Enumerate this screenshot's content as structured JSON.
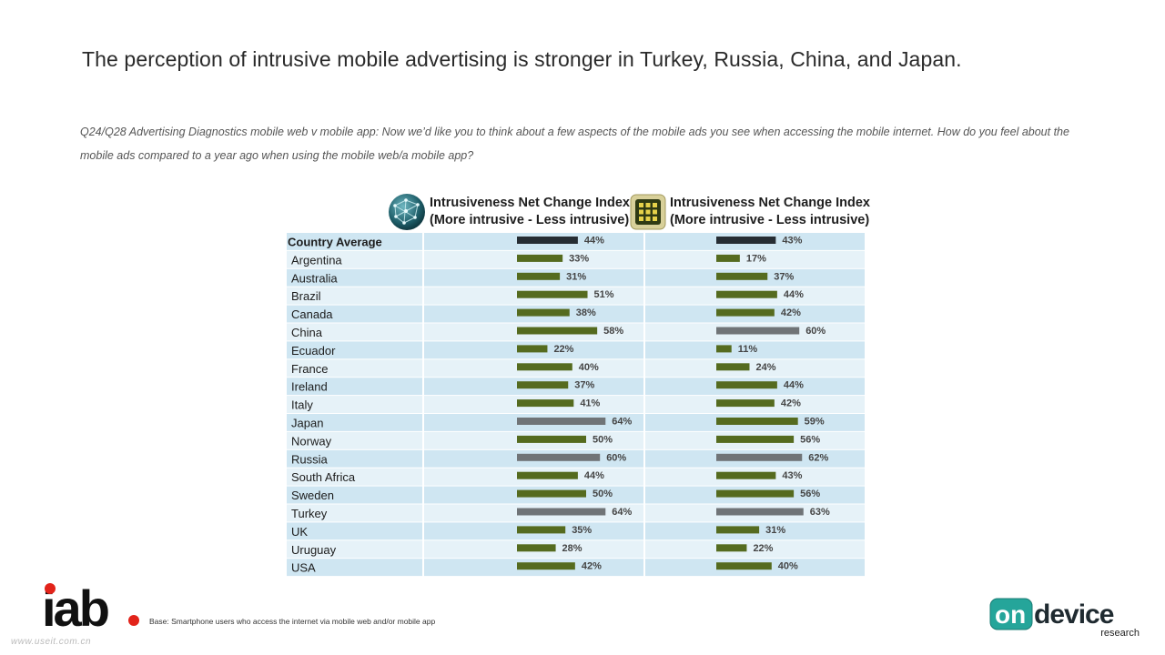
{
  "title": "The perception of intrusive mobile advertising is stronger in Turkey, Russia, China, and Japan.",
  "question": "Q24/Q28 Advertising Diagnostics mobile web v mobile app: Now we’d like you to think about a few aspects of the mobile ads you see when accessing the mobile internet. How do you feel about the mobile ads compared to a year ago when using the mobile web/a mobile app?",
  "base_note": "Base: Smartphone users who access the internet via mobile web and/or mobile app",
  "watermark": "www.useit.com.cn",
  "logos": {
    "iab": "iab.",
    "ondevice_main_a": "on",
    "ondevice_main_b": "device",
    "ondevice_sub": "research"
  },
  "colors": {
    "average": "#262d33",
    "normal": "#556b1f",
    "highlight": "#707477",
    "row_light": "#cfe6f2",
    "row_lighter": "#e6f2f8"
  },
  "chart_data": {
    "type": "bar",
    "orientation": "horizontal",
    "categories": [
      "Country Average",
      "Argentina",
      "Australia",
      "Brazil",
      "Canada",
      "China",
      "Ecuador",
      "France",
      "Ireland",
      "Italy",
      "Japan",
      "Norway",
      "Russia",
      "South Africa",
      "Sweden",
      "Turkey",
      "UK",
      "Uruguay",
      "USA"
    ],
    "series": [
      {
        "name": "Intrusiveness Net Change Index\n(More intrusive - Less intrusive)",
        "name_line1": "Intrusiveness Net Change Index",
        "name_line2": "(More intrusive - Less intrusive)",
        "icon": "mobile-web-globe-icon",
        "values": [
          44,
          33,
          31,
          51,
          38,
          58,
          22,
          40,
          37,
          41,
          64,
          50,
          60,
          44,
          50,
          64,
          35,
          28,
          42
        ],
        "labels": [
          "44%",
          "33%",
          "31%",
          "51%",
          "38%",
          "58%",
          "22%",
          "40%",
          "37%",
          "41%",
          "64%",
          "50%",
          "60%",
          "44%",
          "50%",
          "64%",
          "35%",
          "28%",
          "42%"
        ],
        "highlight": [
          "average",
          "normal",
          "normal",
          "normal",
          "normal",
          "normal",
          "normal",
          "normal",
          "normal",
          "normal",
          "highlight",
          "normal",
          "highlight",
          "normal",
          "normal",
          "highlight",
          "normal",
          "normal",
          "normal"
        ]
      },
      {
        "name": "Intrusiveness Net Change Index\n(More intrusive - Less intrusive)",
        "name_line1": "Intrusiveness Net Change Index",
        "name_line2": "(More intrusive - Less intrusive)",
        "icon": "mobile-app-grid-icon",
        "values": [
          43,
          17,
          37,
          44,
          42,
          60,
          11,
          24,
          44,
          42,
          59,
          56,
          62,
          43,
          56,
          63,
          31,
          22,
          40
        ],
        "labels": [
          "43%",
          "17%",
          "37%",
          "44%",
          "42%",
          "60%",
          "11%",
          "24%",
          "44%",
          "42%",
          "59%",
          "56%",
          "62%",
          "43%",
          "56%",
          "63%",
          "31%",
          "22%",
          "40%"
        ],
        "highlight": [
          "average",
          "normal",
          "normal",
          "normal",
          "normal",
          "highlight",
          "normal",
          "normal",
          "normal",
          "normal",
          "normal",
          "normal",
          "highlight",
          "normal",
          "normal",
          "highlight",
          "normal",
          "normal",
          "normal"
        ]
      }
    ],
    "value_unit": "%",
    "grid": false,
    "legend": "top, above each bar column"
  }
}
